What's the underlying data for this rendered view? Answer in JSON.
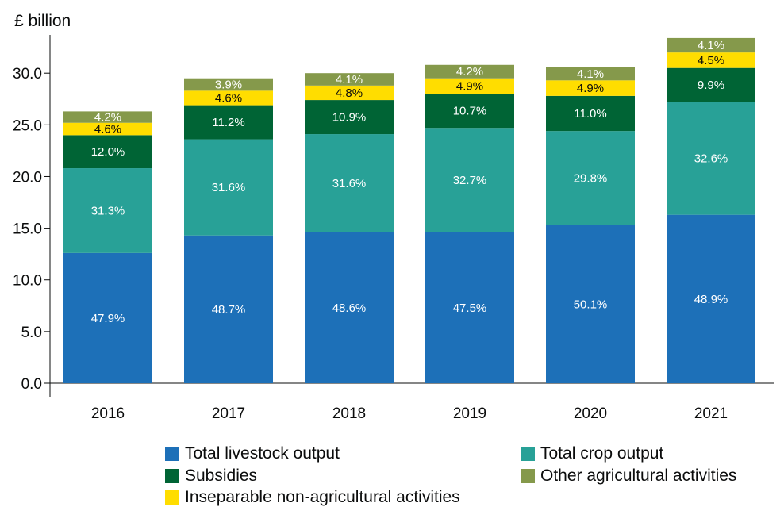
{
  "chart_data": {
    "type": "bar",
    "stacked": true,
    "title": "",
    "ylabel": "£ billion",
    "xlabel": "",
    "ylim": [
      0,
      33.7
    ],
    "yticks": [
      "0.0",
      "5.0",
      "10.0",
      "15.0",
      "20.0",
      "25.0",
      "30.0"
    ],
    "grid": false,
    "legend_position": "bottom",
    "categories": [
      "2016",
      "2017",
      "2018",
      "2019",
      "2020",
      "2021"
    ],
    "series": [
      {
        "name": "Total livestock output",
        "color": "#1d70b8",
        "values": [
          12.6,
          14.3,
          14.6,
          14.6,
          15.3,
          16.3
        ],
        "labels": [
          "47.9%",
          "48.7%",
          "48.6%",
          "47.5%",
          "50.1%",
          "48.9%"
        ],
        "label_color": "#ffffff"
      },
      {
        "name": "Total crop output",
        "color": "#28a197",
        "values": [
          8.2,
          9.3,
          9.5,
          10.1,
          9.1,
          10.9
        ],
        "labels": [
          "31.3%",
          "31.6%",
          "31.6%",
          "32.7%",
          "29.8%",
          "32.6%"
        ],
        "label_color": "#ffffff"
      },
      {
        "name": "Subsidies",
        "color": "#006435",
        "values": [
          3.2,
          3.3,
          3.3,
          3.3,
          3.4,
          3.3
        ],
        "labels": [
          "12.0%",
          "11.2%",
          "10.9%",
          "10.7%",
          "11.0%",
          "9.9%"
        ],
        "label_color": "#ffffff"
      },
      {
        "name": "Inseparable non-agricultural activities",
        "color": "#ffdd00",
        "values": [
          1.2,
          1.4,
          1.4,
          1.5,
          1.5,
          1.5
        ],
        "labels": [
          "4.6%",
          "4.6%",
          "4.8%",
          "4.9%",
          "4.9%",
          "4.5%"
        ],
        "label_color": "#0b0c0c"
      },
      {
        "name": "Other agricultural activities",
        "color": "#85994b",
        "values": [
          1.1,
          1.2,
          1.2,
          1.3,
          1.3,
          1.4
        ],
        "labels": [
          "4.2%",
          "3.9%",
          "4.1%",
          "4.2%",
          "4.1%",
          "4.1%"
        ],
        "label_color": "#ffffff"
      }
    ]
  },
  "legend": [
    {
      "label": "Total livestock output",
      "color": "#1d70b8"
    },
    {
      "label": "Total crop output",
      "color": "#28a197"
    },
    {
      "label": "Subsidies",
      "color": "#006435"
    },
    {
      "label": "Other agricultural activities",
      "color": "#85994b"
    },
    {
      "label": "Inseparable non-agricultural activities",
      "color": "#ffdd00"
    }
  ]
}
